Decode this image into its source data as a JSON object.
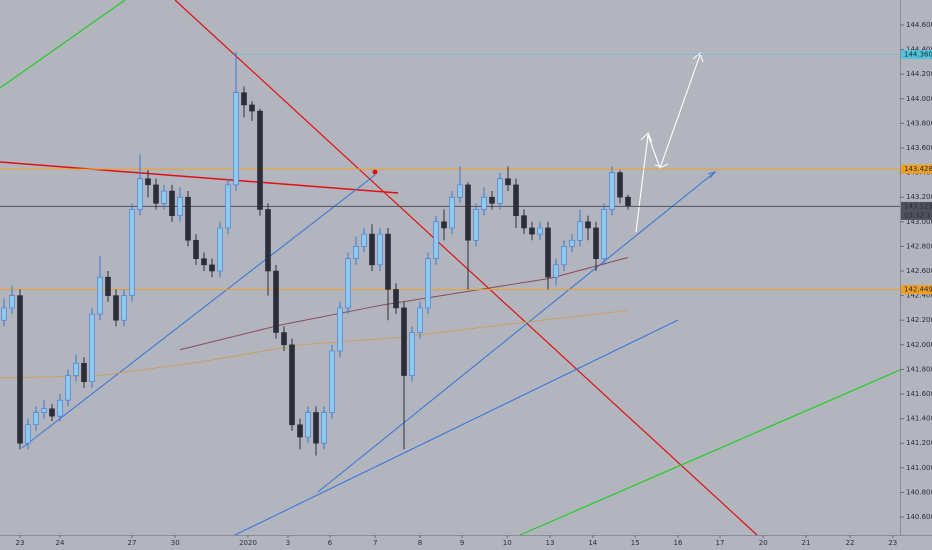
{
  "chart_data": {
    "type": "candlestick",
    "open": [
      142.2,
      142.3,
      142.4,
      141.2,
      141.35,
      141.45,
      141.48,
      141.42,
      141.55,
      141.75,
      141.85,
      141.7,
      142.25,
      142.55,
      142.4,
      142.2,
      142.4,
      143.1,
      143.35,
      143.3,
      143.15,
      143.25,
      143.05,
      143.2,
      142.85,
      142.7,
      142.65,
      142.6,
      142.95,
      143.3,
      144.05,
      143.95,
      143.9,
      143.1,
      142.6,
      142.1,
      142.0,
      141.35,
      141.25,
      141.45,
      141.2,
      141.45,
      141.95,
      142.3,
      142.7,
      142.8,
      142.9,
      142.65,
      142.9,
      142.45,
      142.3,
      141.75,
      142.1,
      142.3,
      142.7,
      143.0,
      142.95,
      143.2,
      143.3,
      142.85,
      143.1,
      143.2,
      143.15,
      143.35,
      143.3,
      143.05,
      142.95,
      142.9,
      142.95,
      142.55,
      142.65,
      142.8,
      142.85,
      143.0,
      142.95,
      142.7,
      143.1,
      143.4,
      143.2
    ],
    "high": [
      142.38,
      142.48,
      142.45,
      141.4,
      141.5,
      141.55,
      141.52,
      141.6,
      141.8,
      141.92,
      141.9,
      142.3,
      142.72,
      142.6,
      142.45,
      142.45,
      143.15,
      143.55,
      143.42,
      143.35,
      143.3,
      143.3,
      143.28,
      143.25,
      142.9,
      142.75,
      142.7,
      143.0,
      143.35,
      144.38,
      144.1,
      143.98,
      143.92,
      143.15,
      142.65,
      142.15,
      142.05,
      141.4,
      141.5,
      141.5,
      141.5,
      142.0,
      142.35,
      142.75,
      142.88,
      142.95,
      142.98,
      142.95,
      142.95,
      142.5,
      142.35,
      142.15,
      142.35,
      142.75,
      143.05,
      143.1,
      143.25,
      143.45,
      143.32,
      143.15,
      143.28,
      143.25,
      143.4,
      143.45,
      143.35,
      143.1,
      143.0,
      143.0,
      143.0,
      142.7,
      142.85,
      142.9,
      143.1,
      143.05,
      143.0,
      143.15,
      143.45,
      143.42,
      143.22
    ],
    "low": [
      142.15,
      142.25,
      141.15,
      141.15,
      141.3,
      141.4,
      141.38,
      141.38,
      141.5,
      141.7,
      141.65,
      141.65,
      142.2,
      142.35,
      142.15,
      142.15,
      142.35,
      143.05,
      143.2,
      143.1,
      143.1,
      143.0,
      143.0,
      142.8,
      142.65,
      142.6,
      142.55,
      142.55,
      142.9,
      143.25,
      143.85,
      143.82,
      143.05,
      142.4,
      142.05,
      141.95,
      141.3,
      141.15,
      141.2,
      141.1,
      141.15,
      141.4,
      141.9,
      142.25,
      142.65,
      142.75,
      142.6,
      142.6,
      142.2,
      142.25,
      141.15,
      141.7,
      142.05,
      142.25,
      142.65,
      142.85,
      142.9,
      143.15,
      142.45,
      142.8,
      143.05,
      143.1,
      143.1,
      143.25,
      142.95,
      142.9,
      142.85,
      142.85,
      142.45,
      142.48,
      142.6,
      142.75,
      142.8,
      142.85,
      142.6,
      142.65,
      143.05,
      143.15,
      143.1
    ],
    "close": [
      142.3,
      142.4,
      141.2,
      141.35,
      141.45,
      141.48,
      141.42,
      141.55,
      141.75,
      141.85,
      141.7,
      142.25,
      142.55,
      142.4,
      142.2,
      142.4,
      143.1,
      143.35,
      143.3,
      143.15,
      143.25,
      143.05,
      143.2,
      142.85,
      142.7,
      142.65,
      142.6,
      142.95,
      143.3,
      144.05,
      143.95,
      143.9,
      143.1,
      142.6,
      142.1,
      142.0,
      141.35,
      141.25,
      141.45,
      141.2,
      141.45,
      141.95,
      142.3,
      142.7,
      142.8,
      142.9,
      142.65,
      142.9,
      142.45,
      142.3,
      141.75,
      142.1,
      142.3,
      142.7,
      143.0,
      142.95,
      143.2,
      143.3,
      142.85,
      143.1,
      143.2,
      143.15,
      143.35,
      143.3,
      143.05,
      142.95,
      142.9,
      142.95,
      142.55,
      142.65,
      142.8,
      142.85,
      143.0,
      142.95,
      142.7,
      143.1,
      143.4,
      143.2,
      143.13
    ],
    "up_color": "#90c8f0",
    "down_color": "#2a2e39",
    "moving_averages": [
      {
        "color": "#8b4a5a",
        "x": [
          22,
          34.5,
          47,
          59.5,
          68.25,
          78
        ],
        "values": [
          141.96,
          142.16,
          142.32,
          142.45,
          142.54,
          142.71
        ]
      },
      {
        "color": "#c8a060",
        "x": [
          -0.5,
          12,
          24.5,
          37,
          49.5,
          62,
          78
        ],
        "values": [
          141.73,
          141.75,
          141.86,
          142.0,
          142.06,
          142.16,
          142.28
        ]
      }
    ],
    "xlim": [
      -0.5,
      112
    ],
    "xticks": [
      {
        "value": 2,
        "label": "23"
      },
      {
        "value": 7,
        "label": "24"
      },
      {
        "value": 16,
        "label": "27"
      },
      {
        "value": 21.4,
        "label": "30"
      },
      {
        "value": 30.5,
        "label": "2020"
      },
      {
        "value": 35.5,
        "label": "3"
      },
      {
        "value": 40.75,
        "label": "6"
      },
      {
        "value": 46.4,
        "label": "7"
      },
      {
        "value": 52,
        "label": "8"
      },
      {
        "value": 57.25,
        "label": "9"
      },
      {
        "value": 62.9,
        "label": "10"
      },
      {
        "value": 68.25,
        "label": "13"
      },
      {
        "value": 73.6,
        "label": "14"
      },
      {
        "value": 78.9,
        "label": "15"
      },
      {
        "value": 84.25,
        "label": "16"
      },
      {
        "value": 89.5,
        "label": "17"
      },
      {
        "value": 94.9,
        "label": "20"
      },
      {
        "value": 100.25,
        "label": "21"
      },
      {
        "value": 105.75,
        "label": "22"
      },
      {
        "value": 111.1,
        "label": "23"
      }
    ],
    "ylim": [
      140.332,
      144.803
    ],
    "yticks": [
      {
        "value": 140.6,
        "label": "140.600"
      },
      {
        "value": 140.8,
        "label": "140.800"
      },
      {
        "value": 141.0,
        "label": "141.000"
      },
      {
        "value": 141.2,
        "label": "141.200"
      },
      {
        "value": 141.4,
        "label": "141.400"
      },
      {
        "value": 141.6,
        "label": "141.600"
      },
      {
        "value": 141.8,
        "label": "141.800"
      },
      {
        "value": 142.0,
        "label": "142.000"
      },
      {
        "value": 142.2,
        "label": "142.200"
      },
      {
        "value": 142.4,
        "label": "142.400"
      },
      {
        "value": 142.6,
        "label": "142.600"
      },
      {
        "value": 142.8,
        "label": "142.800"
      },
      {
        "value": 143.0,
        "label": "143.000"
      },
      {
        "value": 143.2,
        "label": "143.200"
      },
      {
        "value": 143.4,
        "label": "143.400"
      },
      {
        "value": 143.6,
        "label": "143.600"
      },
      {
        "value": 143.8,
        "label": "143.800"
      },
      {
        "value": 144.0,
        "label": "144.000"
      },
      {
        "value": 144.2,
        "label": "144.200"
      },
      {
        "value": 144.4,
        "label": "144.400"
      },
      {
        "value": 144.6,
        "label": "144.600"
      }
    ],
    "price_levels": [
      {
        "price": {
          "value": 144.36,
          "label": "144.360"
        },
        "color": "#4fc3d9"
      },
      {
        "price": 143.428,
        "color": "#f0a020"
      },
      {
        "price": 143.125,
        "color": "#50535e",
        "countdown": "03:32:18"
      },
      {
        "price": 142.449,
        "color": "#f0a020"
      }
    ],
    "grid": false
  }
}
